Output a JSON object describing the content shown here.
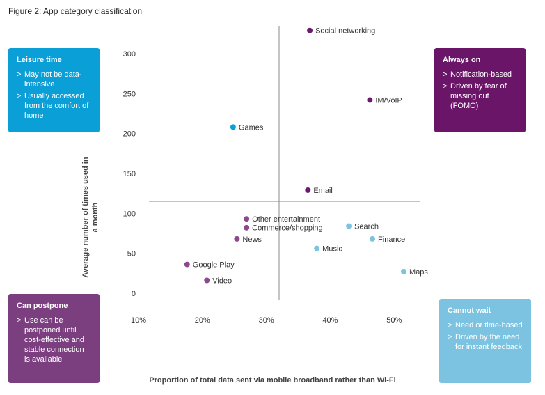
{
  "chart_data": {
    "type": "scatter",
    "title": "Figure 2: App category classification",
    "xlabel": "Proportion of total data sent via mobile broadband rather than Wi-Fi",
    "ylabel": "Average number of times used in a month",
    "xlim": [
      10,
      54
    ],
    "ylim": [
      -7,
      335
    ],
    "xticks": [
      {
        "value": 10,
        "label": "10%"
      },
      {
        "value": 20,
        "label": "20%"
      },
      {
        "value": 30,
        "label": "30%"
      },
      {
        "value": 40,
        "label": "40%"
      },
      {
        "value": 50,
        "label": "50%"
      }
    ],
    "yticks": [
      0,
      50,
      100,
      150,
      200,
      250,
      300
    ],
    "quadrant_x": 32,
    "quadrant_y": 116,
    "points": [
      {
        "label": "Social networking",
        "x": 36.8,
        "y": 330,
        "color": "#6b1a6c"
      },
      {
        "label": "IM/VoIP",
        "x": 46.2,
        "y": 243,
        "color": "#6b1a6c"
      },
      {
        "label": "Games",
        "x": 24.8,
        "y": 209,
        "color": "#0a9fd7"
      },
      {
        "label": "Email",
        "x": 36.5,
        "y": 130,
        "color": "#6b1a6c"
      },
      {
        "label": "Other entertainment",
        "x": 26.9,
        "y": 94,
        "color": "#8b4a8e"
      },
      {
        "label": "Commerce/shopping",
        "x": 26.9,
        "y": 83,
        "color": "#8b4a8e"
      },
      {
        "label": "News",
        "x": 25.4,
        "y": 69,
        "color": "#8b4a8e"
      },
      {
        "label": "Search",
        "x": 42.9,
        "y": 85,
        "color": "#7cc3e1"
      },
      {
        "label": "Finance",
        "x": 46.6,
        "y": 69,
        "color": "#7cc3e1"
      },
      {
        "label": "Music",
        "x": 37.9,
        "y": 57,
        "color": "#7cc3e1"
      },
      {
        "label": "Google Play",
        "x": 17.6,
        "y": 37,
        "color": "#8b4a8e"
      },
      {
        "label": "Video",
        "x": 20.7,
        "y": 17,
        "color": "#8b4a8e"
      },
      {
        "label": "Maps",
        "x": 51.5,
        "y": 28,
        "color": "#7cc3e1"
      }
    ],
    "annotations": [
      {
        "title": "Leisure time",
        "corner": "upper-left",
        "color": "#0a9fd7",
        "bullets": [
          "May not be data-intensive",
          "Usually accessed from the comfort of home"
        ]
      },
      {
        "title": "Always on",
        "corner": "upper-right",
        "color": "#6b1568",
        "bullets": [
          "Notification-based",
          "Driven by fear of missing out (FOMO)"
        ]
      },
      {
        "title": "Can postpone",
        "corner": "lower-left",
        "color": "#7b3f80",
        "bullets": [
          "Use can be postponed until cost-effective and stable connection is available"
        ]
      },
      {
        "title": "Cannot wait",
        "corner": "lower-right",
        "color": "#7cc3e1",
        "bullets": [
          "Need or time-based",
          "Driven by the need for instant feedback"
        ]
      }
    ]
  }
}
